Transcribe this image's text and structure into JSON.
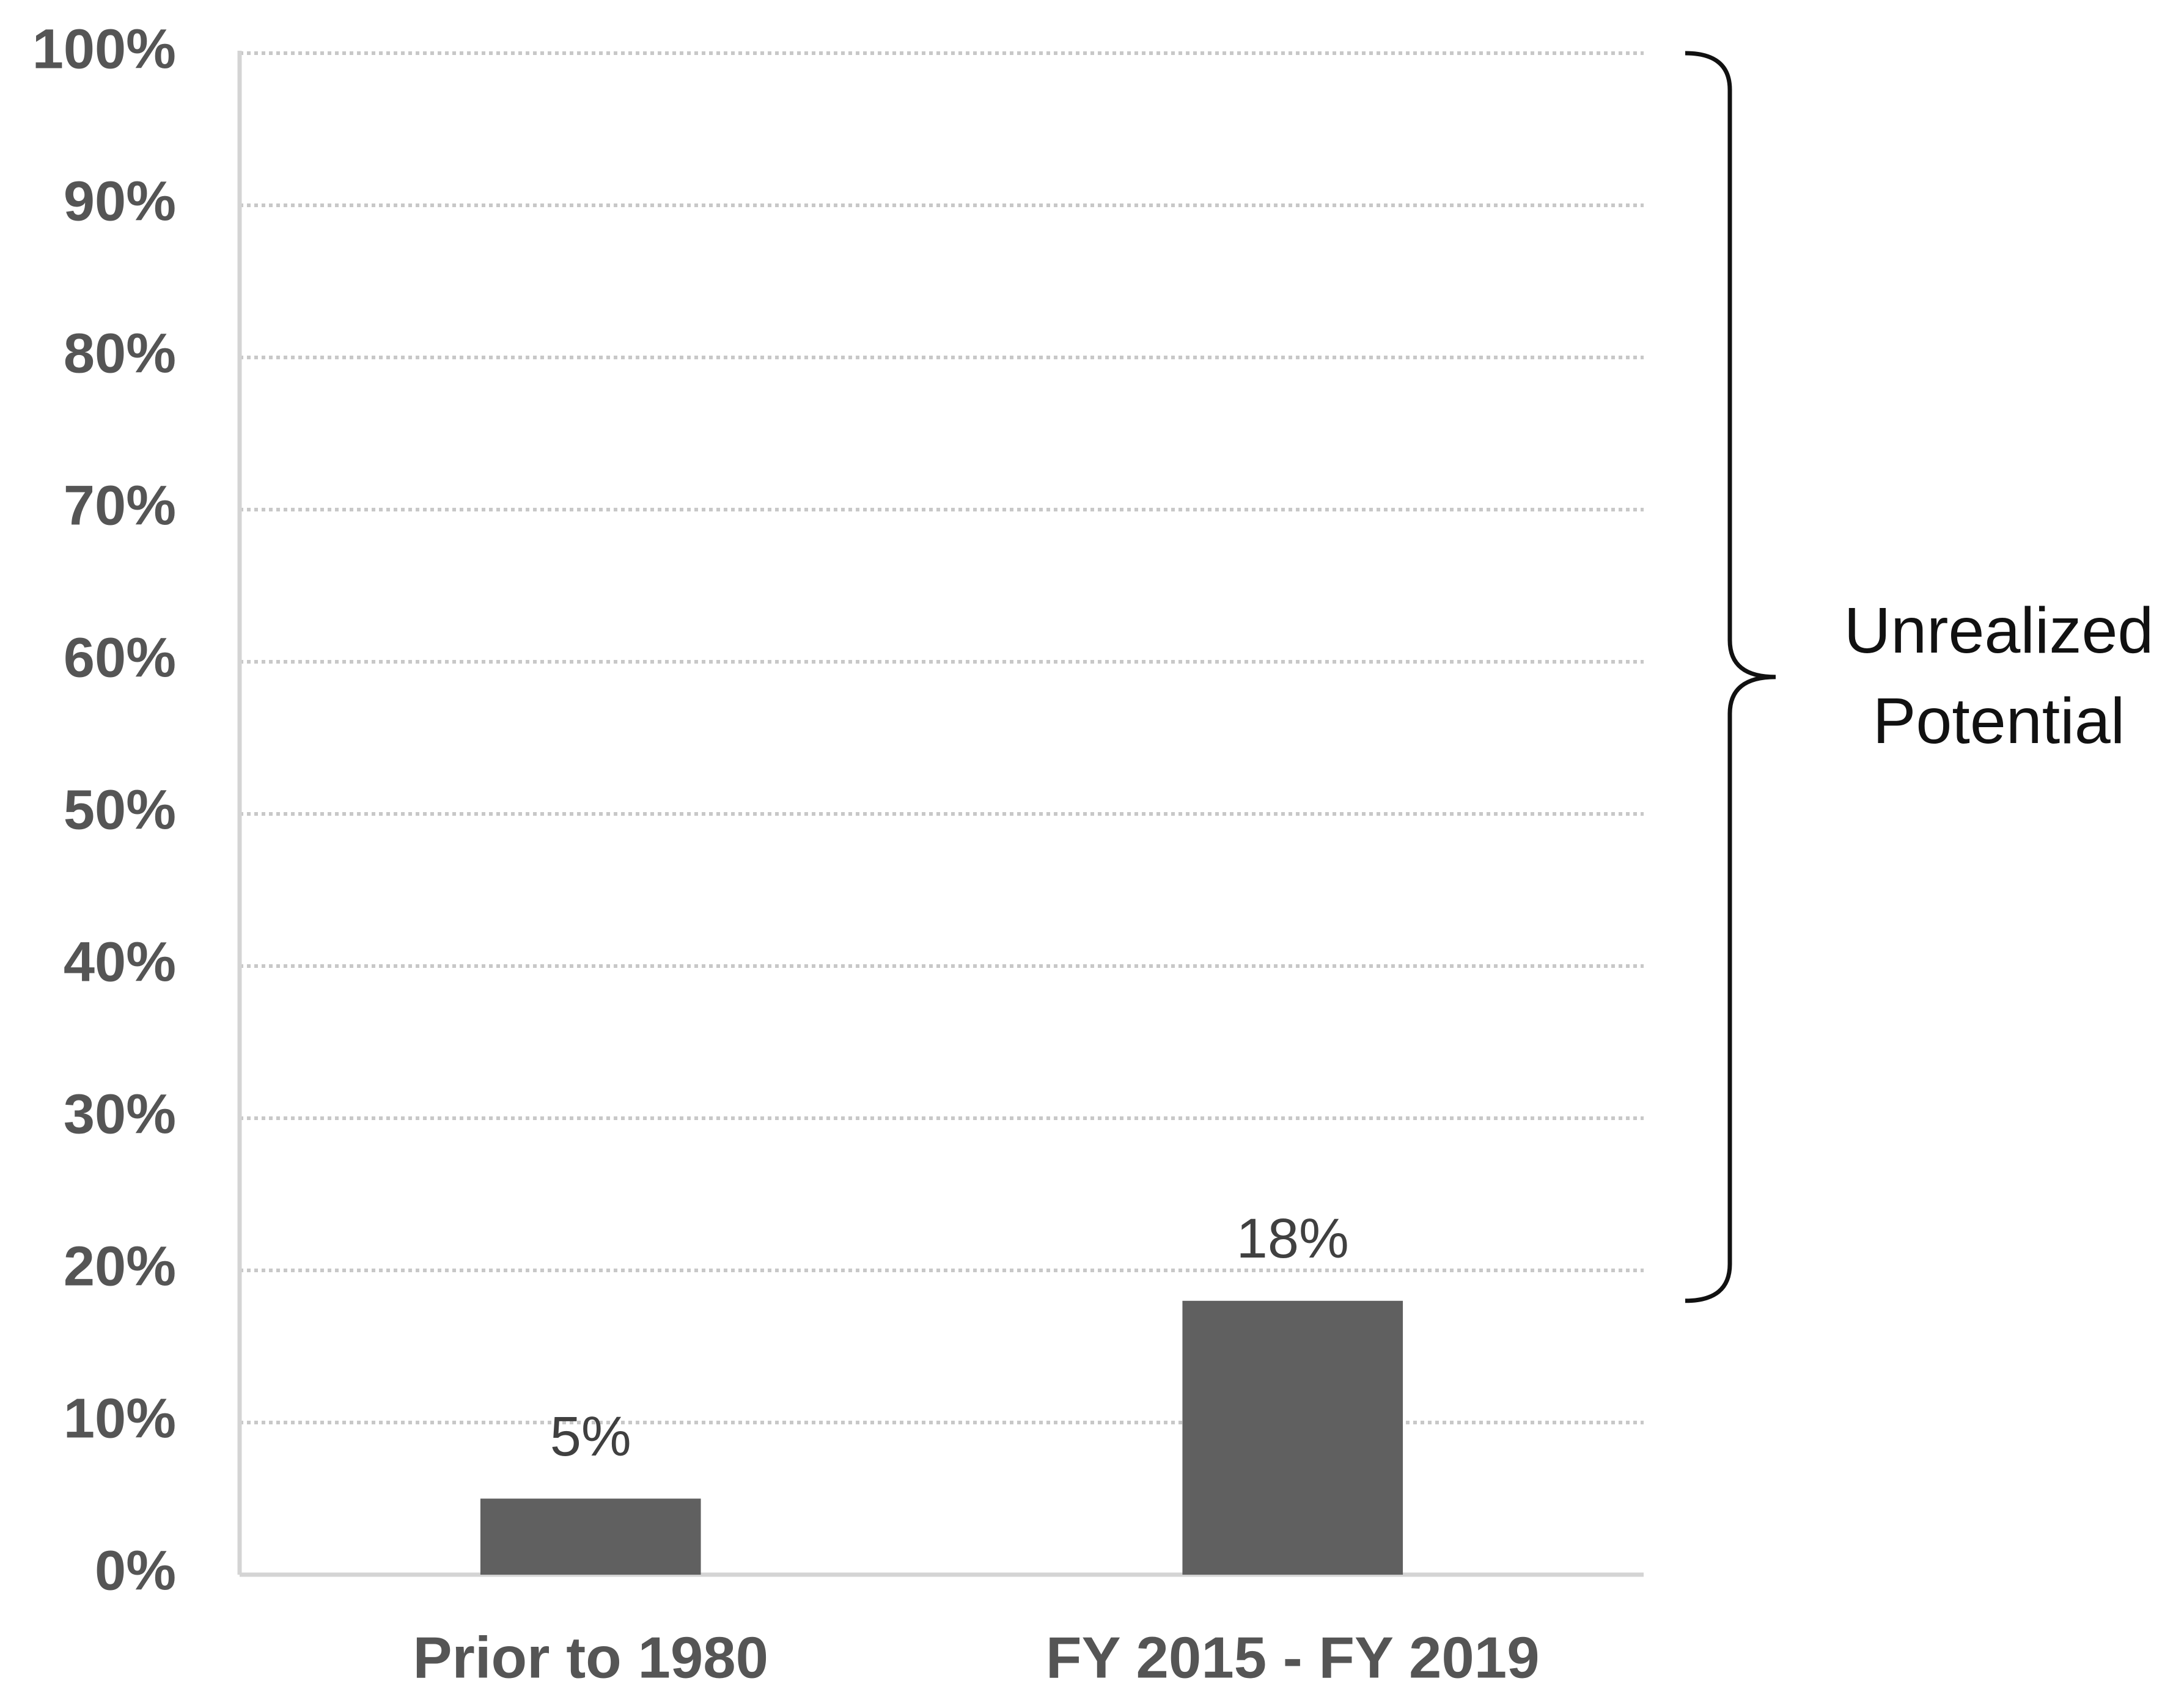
{
  "chart_data": {
    "type": "bar",
    "categories": [
      "Prior to 1980",
      "FY 2015 - FY 2019"
    ],
    "values": [
      5,
      18
    ],
    "value_labels": [
      "5%",
      "18%"
    ],
    "color": "#606060",
    "ylim": [
      0,
      100
    ],
    "yticks": [
      {
        "value": 0,
        "label": "0%"
      },
      {
        "value": 10,
        "label": "10%"
      },
      {
        "value": 20,
        "label": "20%"
      },
      {
        "value": 30,
        "label": "30%"
      },
      {
        "value": 40,
        "label": "40%"
      },
      {
        "value": 50,
        "label": "50%"
      },
      {
        "value": 60,
        "label": "60%"
      },
      {
        "value": 70,
        "label": "70%"
      },
      {
        "value": 80,
        "label": "80%"
      },
      {
        "value": 90,
        "label": "90%"
      },
      {
        "value": 100,
        "label": "100%"
      }
    ],
    "grid": true,
    "annotation": [
      "Unrealized",
      "Potential"
    ]
  }
}
